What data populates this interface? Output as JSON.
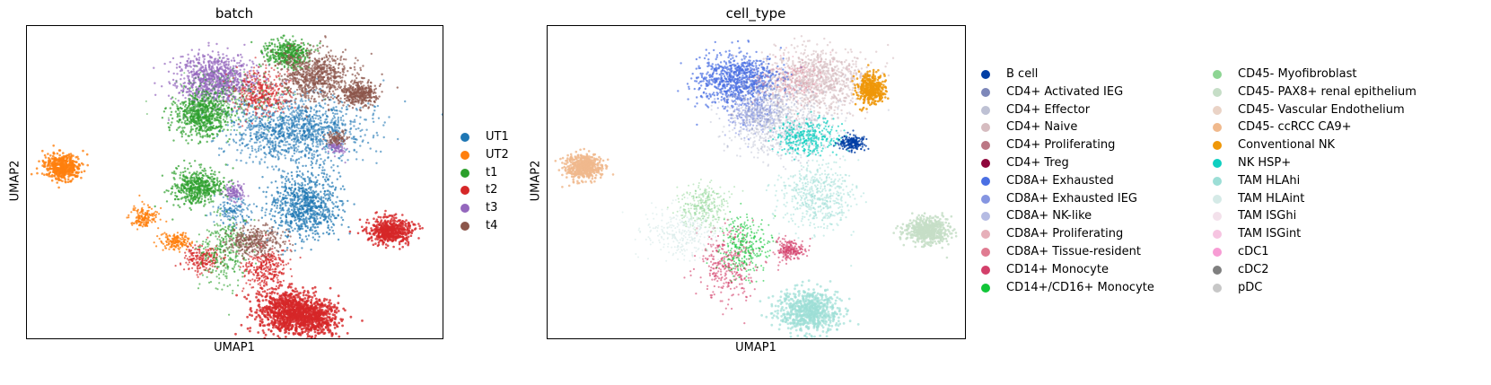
{
  "chart_data": [
    {
      "type": "scatter",
      "title": "batch",
      "xlabel": "UMAP1",
      "ylabel": "UMAP2",
      "grid": false,
      "legend_placement": "right",
      "series": [
        {
          "name": "UT1",
          "color": "#1f77b4"
        },
        {
          "name": "UT2",
          "color": "#ff7f0e"
        },
        {
          "name": "t1",
          "color": "#2ca02c"
        },
        {
          "name": "t2",
          "color": "#d62728"
        },
        {
          "name": "t3",
          "color": "#9467bd"
        },
        {
          "name": "t4",
          "color": "#8c564b"
        }
      ]
    },
    {
      "type": "scatter",
      "title": "cell_type",
      "xlabel": "UMAP1",
      "ylabel": "UMAP2",
      "grid": false,
      "legend_placement": "right",
      "series": [
        {
          "name": "B cell",
          "color": "#023fa5"
        },
        {
          "name": "CD4+ Activated IEG",
          "color": "#7d87b9"
        },
        {
          "name": "CD4+ Effector",
          "color": "#bec1d4"
        },
        {
          "name": "CD4+ Naive",
          "color": "#d6bcc0"
        },
        {
          "name": "CD4+ Proliferating",
          "color": "#bb7784"
        },
        {
          "name": "CD4+ Treg",
          "color": "#8e063b"
        },
        {
          "name": "CD8A+ Exhausted",
          "color": "#4a6fe3"
        },
        {
          "name": "CD8A+ Exhausted IEG",
          "color": "#8595e1"
        },
        {
          "name": "CD8A+ NK-like",
          "color": "#b5bbe3"
        },
        {
          "name": "CD8A+ Proliferating",
          "color": "#e6afb9"
        },
        {
          "name": "CD8A+ Tissue-resident",
          "color": "#e07b91"
        },
        {
          "name": "CD14+ Monocyte",
          "color": "#d33f6a"
        },
        {
          "name": "CD14+/CD16+ Monocyte",
          "color": "#11c638"
        },
        {
          "name": "CD45- Myofibroblast",
          "color": "#8dd593"
        },
        {
          "name": "CD45- PAX8+ renal epithelium",
          "color": "#c6dec7"
        },
        {
          "name": "CD45- Vascular Endothelium",
          "color": "#ead3c6"
        },
        {
          "name": "CD45- ccRCC CA9+",
          "color": "#f0b98d"
        },
        {
          "name": "Conventional NK",
          "color": "#ef9708"
        },
        {
          "name": "NK HSP+",
          "color": "#0fcfc0"
        },
        {
          "name": "TAM HLAhi",
          "color": "#9cded6"
        },
        {
          "name": "TAM HLAint",
          "color": "#d5eae7"
        },
        {
          "name": "TAM ISGhi",
          "color": "#f3e1eb"
        },
        {
          "name": "TAM ISGint",
          "color": "#f6c4e1"
        },
        {
          "name": "cDC1",
          "color": "#f79cd4"
        },
        {
          "name": "cDC2",
          "color": "#7f7f7f"
        },
        {
          "name": "pDC",
          "color": "#c7c7c7"
        }
      ]
    }
  ]
}
